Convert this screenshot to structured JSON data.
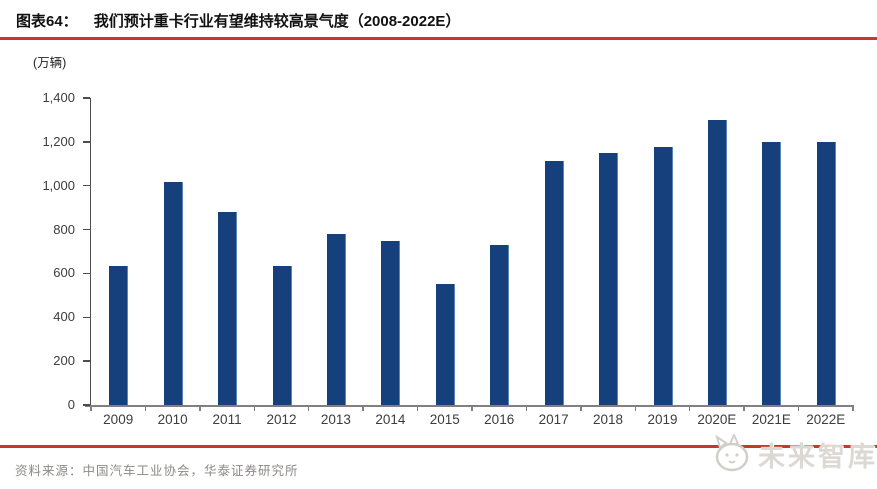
{
  "figure": {
    "label": "图表64：",
    "title": "我们预计重卡行业有望维持较高景气度（2008-2022E）"
  },
  "chart_data": {
    "type": "bar",
    "title": "我们预计重卡行业有望维持较高景气度（2008-2022E）",
    "unit_label": "(万辆)",
    "categories": [
      "2009",
      "2010",
      "2011",
      "2012",
      "2013",
      "2014",
      "2015",
      "2016",
      "2017",
      "2018",
      "2019",
      "2020E",
      "2021E",
      "2022E"
    ],
    "values": [
      636,
      1016,
      880,
      634,
      778,
      747,
      551,
      731,
      1114,
      1151,
      1176,
      1300,
      1201,
      1200
    ],
    "xlabel": "",
    "ylabel": "(万辆)",
    "ylim": [
      0,
      1400
    ],
    "ytick_step": 200,
    "ytick_labels": [
      "0",
      "200",
      "400",
      "600",
      "800",
      "1,000",
      "1,200",
      "1,400"
    ],
    "grid": false,
    "legend": "none"
  },
  "footer": {
    "source": "资料来源：中国汽车工业协会，华泰证券研究所",
    "logo_text": "未来智库"
  },
  "icons": {
    "logo_mascot": "cat-mascot-icon"
  },
  "colors": {
    "bar": "#16407C",
    "bar_edge": "#5B85B5",
    "rule_red": "#C33A25",
    "axis_x": "#808080",
    "axis_y": "#4D4D4D",
    "tick_label": "#3D3D3D",
    "title_text": "#111111",
    "source_text": "#8C8A86",
    "logo_gray": "#DCD9D5"
  }
}
